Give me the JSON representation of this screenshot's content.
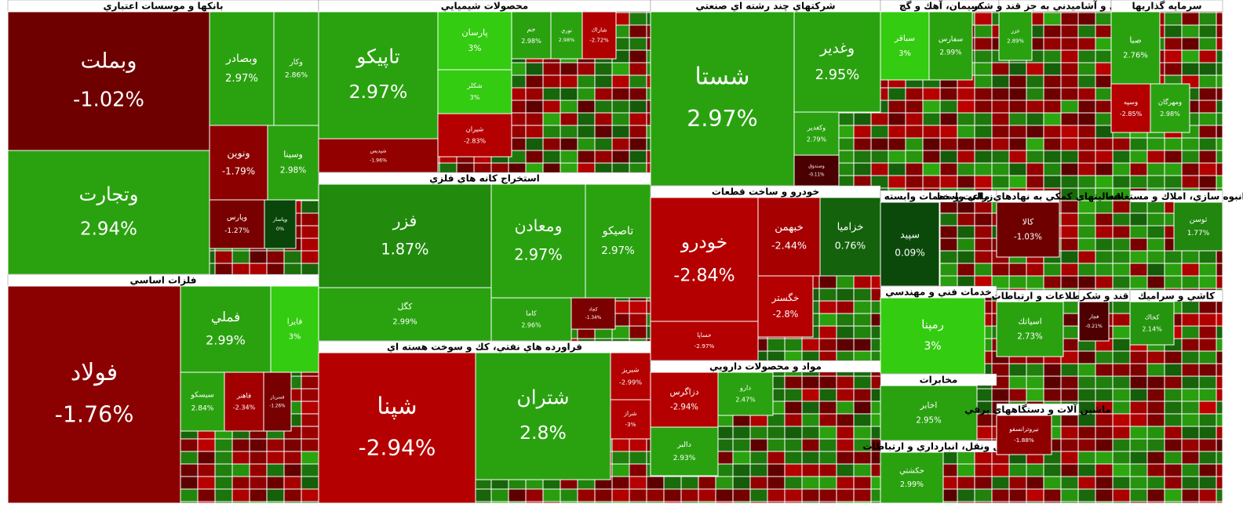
{
  "chart_data": {
    "type": "treemap",
    "sectors": [
      {
        "name": "بانكها و موسسات اعتباري",
        "labels": [
          "وبملت",
          "وتجارت",
          "وبصادر",
          "وكار",
          "ونوين",
          "وسينا",
          "وپارس",
          "وپاسار"
        ],
        "values": [
          -1.02,
          2.94,
          2.97,
          2.86,
          -1.79,
          2.98,
          -1.27,
          0
        ],
        "value_labels": [
          "-1.02%",
          "2.94%",
          "2.97%",
          "2.86%",
          "-1.79%",
          "2.98%",
          "-1.27%",
          "0%"
        ]
      },
      {
        "name": "فلزات اساسي",
        "labels": [
          "فولاد",
          "فملي",
          "فايرا",
          "سيسكو",
          "فاهنر",
          "فسرباز"
        ],
        "values": [
          -1.76,
          2.99,
          3,
          2.84,
          -2.34,
          -1.26
        ],
        "value_labels": [
          "-1.76%",
          "2.99%",
          "3%",
          "2.84%",
          "-2.34%",
          "-1.26%"
        ]
      },
      {
        "name": "محصولات شيميايي",
        "labels": [
          "تاپيكو",
          "شپديس",
          "پارسان",
          "شكلر",
          "شيران",
          "جم",
          "نوري",
          "شاراك"
        ],
        "values": [
          2.97,
          -1.96,
          3,
          3,
          -2.83,
          2.98,
          2.98,
          -2.72
        ],
        "value_labels": [
          "2.97%",
          "-1.96%",
          "3%",
          "3%",
          "-2.83%",
          "2.98%",
          "2.98%",
          "-2.72%"
        ]
      },
      {
        "name": "استخراج كانه هاي فلزي",
        "labels": [
          "فزر",
          "كگل",
          "ومعادن",
          "تاصيكو",
          "كاما",
          "كچاد"
        ],
        "values": [
          1.87,
          2.99,
          2.97,
          2.97,
          2.96,
          -1.34
        ],
        "value_labels": [
          "1.87%",
          "2.99%",
          "2.97%",
          "2.97%",
          "2.96%",
          "-1.34%"
        ]
      },
      {
        "name": "فراورده هاي نفتي، كك و سوخت هسته اي",
        "labels": [
          "شپنا",
          "شتران",
          "شبريز",
          "شراز"
        ],
        "values": [
          -2.94,
          2.8,
          -2.99,
          -3
        ],
        "value_labels": [
          "-2.94%",
          "2.8%",
          "-2.99%",
          "-3%"
        ]
      },
      {
        "name": "شركتهاي چند رشته اي صنعتي",
        "labels": [
          "شستا",
          "وغدير",
          "وكغدير",
          "وصندوق"
        ],
        "values": [
          2.97,
          2.95,
          2.79,
          -0.11
        ],
        "value_labels": [
          "2.97%",
          "2.95%",
          "2.79%",
          "-0.11%"
        ]
      },
      {
        "name": "خودرو و ساخت قطعات",
        "labels": [
          "خودرو",
          "خساپا",
          "خبهمن",
          "خزاميا",
          "خگستر"
        ],
        "values": [
          -2.84,
          -2.97,
          -2.44,
          0.76,
          -2.8
        ],
        "value_labels": [
          "-2.84%",
          "-2.97%",
          "-2.44%",
          "0.76%",
          "-2.8%"
        ]
      },
      {
        "name": "مواد و محصولات دارويي",
        "labels": [
          "دزاگرس",
          "دالبر",
          "دارو"
        ],
        "values": [
          -2.94,
          2.93,
          2.47
        ],
        "value_labels": [
          "-2.94%",
          "2.93%",
          "2.47%"
        ]
      },
      {
        "name": "سيمان، آهك و گچ",
        "labels": [
          "سباقر",
          "سفارس"
        ],
        "values": [
          3,
          2.99
        ],
        "value_labels": [
          "3%",
          "2.99%"
        ]
      },
      {
        "name": "غذايي و آشاميدني به جز قند و شكر",
        "labels": [
          "غزر"
        ],
        "values": [
          2.89
        ],
        "value_labels": [
          "2.89%"
        ]
      },
      {
        "name": "سرمايه گذاريها",
        "labels": [
          "صبا",
          "وسپه",
          "ومهرگان"
        ],
        "values": [
          2.76,
          -2.85,
          2.98
        ],
        "value_labels": [
          "2.76%",
          "-2.85%",
          "2.98%"
        ]
      },
      {
        "name": "زراعت و خدمات وابسته",
        "labels": [
          "سپيد"
        ],
        "values": [
          0.09
        ],
        "value_labels": [
          "0.09%"
        ]
      },
      {
        "name": "فعاليتهاي كمكي به نهادهاي مالي واسط",
        "labels": [
          "كالا"
        ],
        "values": [
          -1.03
        ],
        "value_labels": [
          "-1.03%"
        ]
      },
      {
        "name": "انبوه سازي، املاك و مستغلات",
        "labels": [
          "ثوسن"
        ],
        "values": [
          1.77
        ],
        "value_labels": [
          "1.77%"
        ]
      },
      {
        "name": "خدمات فني و مهندسي",
        "labels": [
          "رمپنا"
        ],
        "values": [
          3
        ],
        "value_labels": [
          "3%"
        ]
      },
      {
        "name": "مخابرات",
        "labels": [
          "اخابر"
        ],
        "values": [
          2.95
        ],
        "value_labels": [
          "2.95%"
        ]
      },
      {
        "name": "حمل ونقل، انبارداري و ارتباطات",
        "labels": [
          "حكشتي"
        ],
        "values": [
          2.99
        ],
        "value_labels": [
          "2.99%"
        ]
      },
      {
        "name": "اطلاعات و ارتباطات",
        "labels": [
          "اسياتك"
        ],
        "values": [
          2.73
        ],
        "value_labels": [
          "2.73%"
        ]
      },
      {
        "name": "قند و شكر",
        "labels": [
          "قچار"
        ],
        "values": [
          -0.21
        ],
        "value_labels": [
          "-0.21%"
        ]
      },
      {
        "name": "كاشي و سراميك",
        "labels": [
          "كخاك"
        ],
        "values": [
          2.14
        ],
        "value_labels": [
          "2.14%"
        ]
      },
      {
        "name": "ماشين آلات و دستگاههاي برقي",
        "labels": [
          "نيروترانسفو"
        ],
        "values": [
          -1.88
        ],
        "value_labels": [
          "-1.88%"
        ]
      }
    ]
  }
}
